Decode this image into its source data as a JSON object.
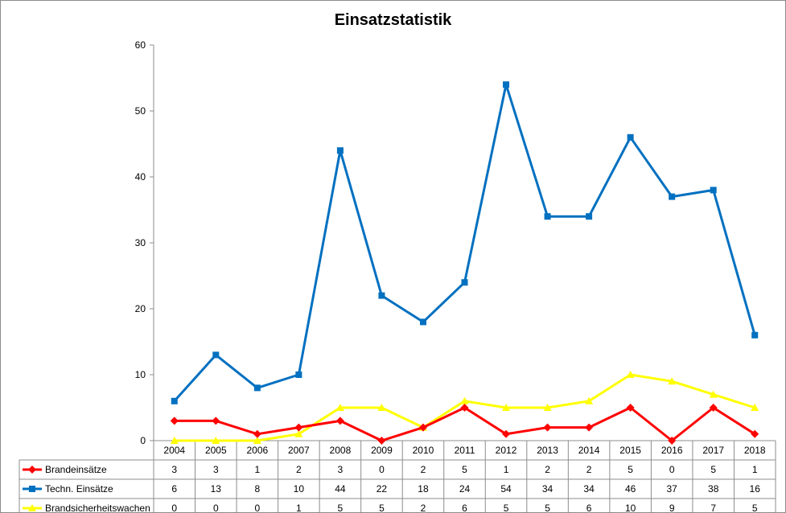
{
  "chart_data": {
    "type": "line",
    "title": "Einsatzstatistik",
    "categories": [
      "2004",
      "2005",
      "2006",
      "2007",
      "2008",
      "2009",
      "2010",
      "2011",
      "2012",
      "2013",
      "2014",
      "2015",
      "2016",
      "2017",
      "2018"
    ],
    "ylim": [
      0,
      60
    ],
    "yticks": [
      0,
      10,
      20,
      30,
      40,
      50,
      60
    ],
    "grid": false,
    "legend": "data-table-left",
    "series": [
      {
        "name": "Brandeinsätze",
        "color": "#ff0000",
        "marker": "diamond",
        "values": [
          3,
          3,
          1,
          2,
          3,
          0,
          2,
          5,
          1,
          2,
          2,
          5,
          0,
          5,
          1
        ]
      },
      {
        "name": "Techn. Einsätze",
        "color": "#0070c0",
        "marker": "square",
        "values": [
          6,
          13,
          8,
          10,
          44,
          22,
          18,
          24,
          54,
          34,
          34,
          46,
          37,
          38,
          16
        ]
      },
      {
        "name": "Brandsicherheitswachen",
        "color": "#ffff00",
        "marker": "triangle",
        "values": [
          0,
          0,
          0,
          1,
          5,
          5,
          2,
          6,
          5,
          5,
          6,
          10,
          9,
          7,
          5
        ]
      }
    ]
  }
}
